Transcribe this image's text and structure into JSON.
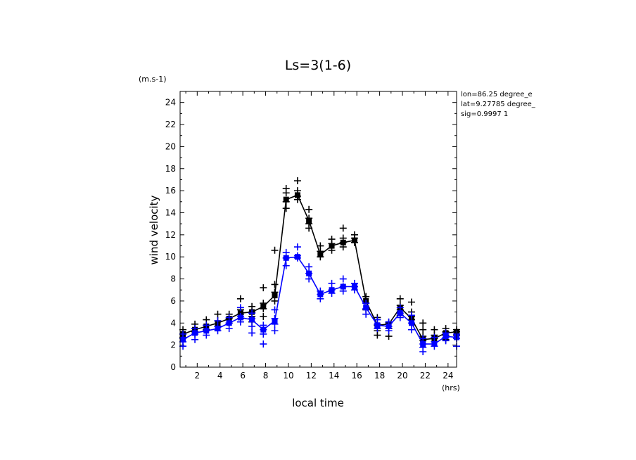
{
  "chart_data": {
    "type": "line",
    "title": "Ls=3(1-6)",
    "xlabel": "local time",
    "ylabel": "wind velocity",
    "y_unit": "(m.s-1)",
    "x_unit": "(hrs)",
    "info": [
      "lon=86.25 degree_e",
      "lat=9.27785 degree_",
      "sig=0.9997 1"
    ],
    "xlim": [
      0.5,
      24.75
    ],
    "ylim": [
      0,
      25
    ],
    "xticks": [
      2,
      4,
      6,
      8,
      10,
      12,
      14,
      16,
      18,
      20,
      22,
      24
    ],
    "yticks": [
      0,
      2,
      4,
      6,
      8,
      10,
      12,
      14,
      16,
      18,
      20,
      22,
      24
    ],
    "colors": {
      "series1": "#000000",
      "series2": "#0000ff"
    },
    "x": [
      0.75,
      1.8,
      2.8,
      3.8,
      4.8,
      5.8,
      6.8,
      7.8,
      8.8,
      9.8,
      10.8,
      11.8,
      12.8,
      13.8,
      14.8,
      15.8,
      16.8,
      17.8,
      18.8,
      19.8,
      20.8,
      21.8,
      22.8,
      23.8,
      24.75
    ],
    "series": [
      {
        "color": "#000000",
        "values": [
          3.0,
          3.4,
          3.7,
          4.0,
          4.4,
          4.9,
          5.0,
          5.5,
          6.5,
          15.2,
          15.6,
          13.3,
          10.2,
          11.0,
          11.3,
          11.5,
          6.0,
          3.8,
          3.9,
          5.4,
          4.4,
          2.5,
          2.6,
          3.1,
          3.2
        ],
        "scatter": [
          [
            0.75,
            [
              3.4,
              3.0,
              2.7
            ]
          ],
          [
            1.8,
            [
              3.9,
              3.5,
              3.2
            ]
          ],
          [
            2.8,
            [
              4.3,
              3.8,
              3.4
            ]
          ],
          [
            3.8,
            [
              4.8,
              4.2,
              3.7
            ]
          ],
          [
            4.8,
            [
              4.8,
              4.4,
              4.0
            ]
          ],
          [
            5.8,
            [
              6.2,
              5.2,
              4.8,
              4.4
            ]
          ],
          [
            6.8,
            [
              5.5,
              5.0,
              4.6,
              4.1
            ]
          ],
          [
            7.8,
            [
              7.2,
              5.8,
              5.3,
              4.6
            ]
          ],
          [
            8.8,
            [
              10.6,
              7.5,
              6.8,
              6.0
            ]
          ],
          [
            9.8,
            [
              16.2,
              15.8,
              15.0,
              14.4
            ]
          ],
          [
            10.8,
            [
              16.9,
              16.0,
              15.5,
              15.2
            ]
          ],
          [
            11.8,
            [
              14.3,
              13.5,
              13.0,
              12.6
            ]
          ],
          [
            12.8,
            [
              11.0,
              10.5,
              10.0
            ]
          ],
          [
            13.8,
            [
              11.6,
              11.2,
              10.6
            ]
          ],
          [
            14.8,
            [
              12.6,
              11.7,
              11.3,
              10.9
            ]
          ],
          [
            15.8,
            [
              12.0,
              11.7,
              11.3
            ]
          ],
          [
            16.8,
            [
              6.4,
              5.8,
              5.2
            ]
          ],
          [
            17.8,
            [
              4.5,
              3.8,
              3.3,
              2.9
            ]
          ],
          [
            18.8,
            [
              4.0,
              3.5,
              2.8
            ]
          ],
          [
            19.8,
            [
              6.2,
              5.6,
              5.2,
              4.7
            ]
          ],
          [
            20.8,
            [
              5.9,
              5.0,
              4.6,
              4.3
            ]
          ],
          [
            21.8,
            [
              4.0,
              3.4,
              2.8,
              2.4
            ]
          ],
          [
            22.8,
            [
              3.4,
              2.9,
              2.6
            ]
          ],
          [
            23.8,
            [
              3.5,
              3.2,
              2.9,
              2.5
            ]
          ],
          [
            24.75,
            [
              3.4,
              3.2,
              2.9
            ]
          ]
        ]
      },
      {
        "color": "#0000ff",
        "values": [
          2.5,
          3.1,
          3.3,
          3.5,
          4.0,
          4.5,
          4.3,
          3.4,
          4.2,
          9.9,
          10.0,
          8.5,
          6.6,
          7.0,
          7.3,
          7.3,
          5.4,
          3.8,
          3.7,
          4.9,
          4.0,
          2.1,
          2.1,
          2.8,
          2.7
        ],
        "scatter": [
          [
            0.75,
            [
              3.0,
              2.6,
              2.3,
              1.9
            ]
          ],
          [
            1.8,
            [
              3.5,
              3.0,
              2.5
            ]
          ],
          [
            2.8,
            [
              3.8,
              3.3,
              2.9
            ]
          ],
          [
            3.8,
            [
              4.2,
              3.7,
              3.3
            ]
          ],
          [
            4.8,
            [
              4.5,
              4.0,
              3.5
            ]
          ],
          [
            5.8,
            [
              5.4,
              4.6,
              4.1
            ]
          ],
          [
            6.8,
            [
              4.9,
              4.4,
              3.7,
              3.1
            ]
          ],
          [
            7.8,
            [
              3.8,
              3.4,
              3.0,
              2.1
            ]
          ],
          [
            8.8,
            [
              5.2,
              4.4,
              3.9,
              3.3
            ]
          ],
          [
            9.8,
            [
              10.4,
              9.9,
              9.2
            ]
          ],
          [
            10.8,
            [
              10.9,
              10.1,
              9.9
            ]
          ],
          [
            11.8,
            [
              9.1,
              8.5,
              8.0
            ]
          ],
          [
            12.8,
            [
              6.9,
              6.6,
              6.2
            ]
          ],
          [
            13.8,
            [
              7.6,
              7.0,
              6.7
            ]
          ],
          [
            14.8,
            [
              8.0,
              7.3,
              6.9
            ]
          ],
          [
            15.8,
            [
              7.6,
              7.3,
              7.0
            ]
          ],
          [
            16.8,
            [
              5.8,
              5.3,
              4.8
            ]
          ],
          [
            17.8,
            [
              4.3,
              3.9,
              3.5
            ]
          ],
          [
            18.8,
            [
              4.1,
              3.7,
              3.3
            ]
          ],
          [
            19.8,
            [
              5.4,
              4.9,
              4.5
            ]
          ],
          [
            20.8,
            [
              4.7,
              4.0,
              3.4
            ]
          ],
          [
            21.8,
            [
              2.6,
              2.1,
              1.8,
              1.4
            ]
          ],
          [
            22.8,
            [
              2.7,
              2.3,
              1.9
            ]
          ],
          [
            23.8,
            [
              3.1,
              2.7,
              2.4
            ]
          ],
          [
            24.75,
            [
              3.0,
              2.6,
              1.9
            ]
          ]
        ]
      }
    ]
  }
}
